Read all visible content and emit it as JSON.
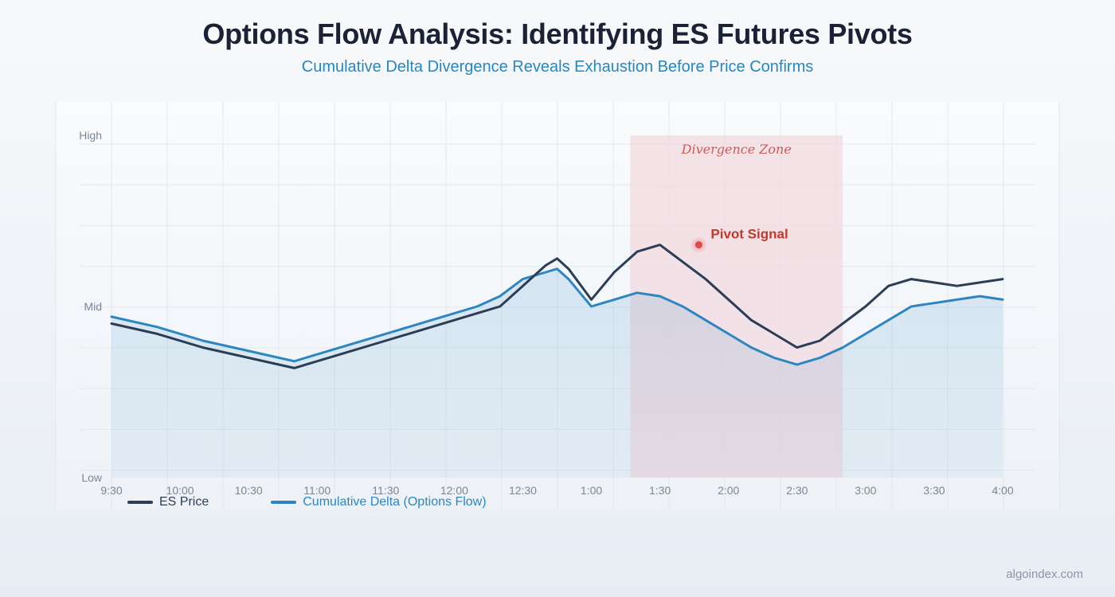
{
  "header": {
    "title": "Options Flow Analysis: Identifying ES Futures Pivots",
    "subtitle": "Cumulative Delta Divergence Reveals Exhaustion Before Price Confirms"
  },
  "footer": {
    "text": "algoindex.com"
  },
  "colors": {
    "price": "#2c3e55",
    "delta": "#2e86c1",
    "zone": "#f2d9df",
    "zone_text": "#cc5a5a",
    "pivot": "#e04a4a",
    "pivot_text": "#c0392b"
  },
  "chart_data": {
    "type": "line",
    "x_ticks": [
      "9:30",
      "10:00",
      "10:30",
      "11:00",
      "11:30",
      "12:00",
      "12:30",
      "1:00",
      "1:30",
      "2:00",
      "2:30",
      "3:00",
      "3:30",
      "4:00"
    ],
    "y_ticks": [
      "High",
      "Mid",
      "Low"
    ],
    "x_range": [
      0,
      390
    ],
    "ylim": [
      0,
      100
    ],
    "grid": true,
    "legend_position": "bottom-left",
    "series": [
      {
        "name": "ES Price",
        "x": [
          0,
          20,
          40,
          60,
          80,
          100,
          120,
          140,
          160,
          170,
          180,
          190,
          195,
          200,
          210,
          220,
          230,
          240,
          250,
          260,
          270,
          280,
          290,
          300,
          310,
          320,
          330,
          340,
          350,
          360,
          370,
          380,
          390
        ],
        "y": [
          45,
          42,
          38,
          35,
          32,
          36,
          40,
          44,
          48,
          50,
          56,
          62,
          64,
          61,
          52,
          60,
          66,
          68,
          63,
          58,
          52,
          46,
          42,
          38,
          40,
          45,
          50,
          56,
          58,
          57,
          56,
          57,
          58
        ],
        "values": [
          45,
          42,
          38,
          35,
          32,
          36,
          40,
          44,
          48,
          50,
          56,
          62,
          64,
          61,
          52,
          60,
          66,
          68,
          63,
          58,
          52,
          46,
          42,
          38,
          40,
          45,
          50,
          56,
          58,
          57,
          56,
          57,
          58
        ]
      },
      {
        "name": "Cumulative Delta (Options Flow)",
        "x": [
          0,
          20,
          40,
          60,
          80,
          100,
          120,
          140,
          160,
          170,
          180,
          190,
          195,
          200,
          210,
          220,
          230,
          240,
          250,
          260,
          270,
          280,
          290,
          300,
          310,
          320,
          330,
          340,
          350,
          360,
          370,
          380,
          390
        ],
        "y": [
          47,
          44,
          40,
          37,
          34,
          38,
          42,
          46,
          50,
          53,
          58,
          60,
          61,
          58,
          50,
          52,
          54,
          53,
          50,
          46,
          42,
          38,
          35,
          33,
          35,
          38,
          42,
          46,
          50,
          51,
          52,
          53,
          52
        ],
        "values": [
          47,
          44,
          40,
          37,
          34,
          38,
          42,
          46,
          50,
          53,
          58,
          60,
          61,
          58,
          50,
          52,
          54,
          53,
          50,
          46,
          42,
          38,
          35,
          33,
          35,
          38,
          42,
          46,
          50,
          51,
          52,
          53,
          52
        ]
      }
    ],
    "annotations": {
      "zone_label": "Divergence Zone",
      "zone_x": [
        227,
        320
      ],
      "pivot_label": "Pivot Signal",
      "pivot_x": 257,
      "pivot_y": 68
    }
  }
}
